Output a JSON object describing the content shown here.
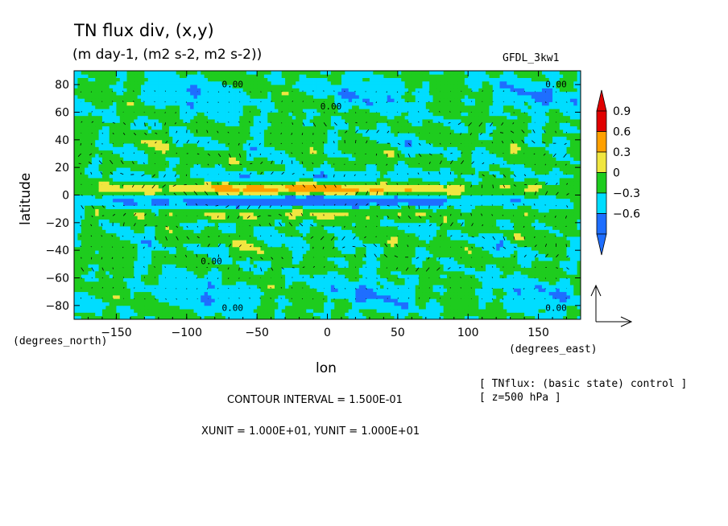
{
  "chart_data": {
    "type": "heatmap",
    "title": "TN flux div, (x,y)",
    "subtitle": "(m day-1, (m2 s-2, m2 s-2))",
    "model_label": "GFDL_3kw1",
    "xlabel": "lon",
    "ylabel": "latitude",
    "x_unit_label": "(degrees_east)",
    "y_unit_label": "(degrees_north)",
    "xlim": [
      -180,
      180
    ],
    "ylim": [
      -90,
      90
    ],
    "x_ticks": [
      -150,
      -100,
      -50,
      0,
      50,
      100,
      150
    ],
    "y_ticks": [
      -80,
      -60,
      -40,
      -20,
      0,
      20,
      40,
      60,
      80
    ],
    "x_tick_labels": [
      "−150",
      "−100",
      "−50",
      "0",
      "50",
      "100",
      "150"
    ],
    "y_tick_labels": [
      "−80",
      "−60",
      "−40",
      "−20",
      "0",
      "20",
      "40",
      "60",
      "80"
    ],
    "colorbar": {
      "levels": [
        -0.6,
        -0.3,
        0,
        0.3,
        0.6,
        0.9
      ],
      "labels": [
        "−0.6",
        "−0.3",
        "0",
        "0.3",
        "0.6",
        "0.9"
      ],
      "colors": [
        "#1e6eff",
        "#00ddff",
        "#1ecc1e",
        "#f0e640",
        "#ffa000",
        "#e00000"
      ],
      "extend": "both"
    },
    "contour_interval_label": "CONTOUR INTERVAL = 1.500E-01",
    "unit_label": "XUNIT = 1.000E+01, YUNIT = 1.000E+01",
    "dataset_label": "[ TNflux: (basic state) control ]",
    "level_label": "[ z=500 hPa ]",
    "contour_labels": [
      "0.00",
      "0.00",
      "0.00",
      "0.00",
      "0.00",
      "0.00"
    ]
  },
  "colors": {
    "deep_blue": "#1e6eff",
    "cyan": "#00ddff",
    "green": "#1ecc1e",
    "yellow": "#f0e640",
    "orange": "#ffa000",
    "red": "#e00000"
  }
}
